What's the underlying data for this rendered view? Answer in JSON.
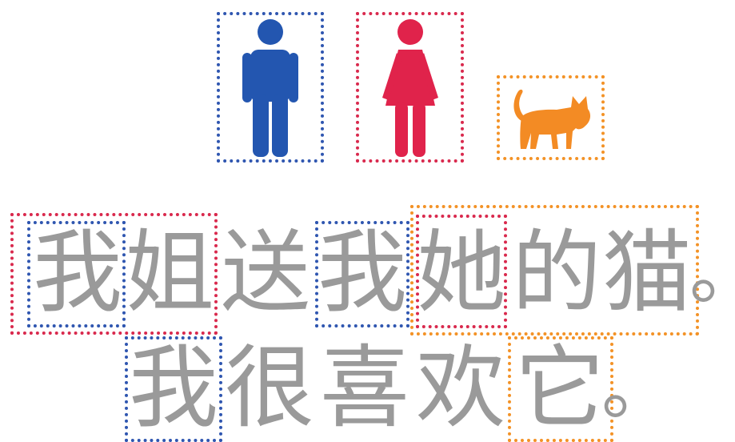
{
  "icons": [
    {
      "name": "man",
      "icon": "man-icon",
      "color": "#2356b0"
    },
    {
      "name": "woman",
      "icon": "woman-icon",
      "color": "#e0234b"
    },
    {
      "name": "cat",
      "icon": "cat-icon",
      "color": "#f38b24"
    }
  ],
  "colors": {
    "blue": "#2f56b0",
    "red": "#d9294d",
    "orange": "#f39226",
    "text": "#9a9a9a"
  },
  "sentence1": {
    "chars": [
      "我",
      "姐",
      "送",
      "我",
      "她",
      "的",
      "猫",
      "。"
    ]
  },
  "sentence2": {
    "chars": [
      "我",
      "很",
      "喜",
      "欢",
      "它",
      "。"
    ]
  }
}
